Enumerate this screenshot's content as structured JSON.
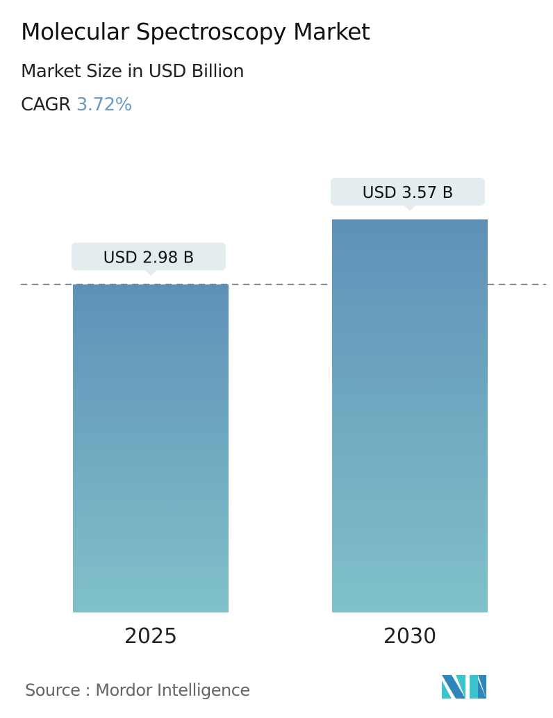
{
  "title": "Molecular Spectroscopy Market",
  "subtitle": "Market Size in USD Billion",
  "cagr_label": "CAGR",
  "cagr_value": "3.72%",
  "source": "Source :  Mordor Intelligence",
  "logo_text": "MI",
  "colors": {
    "bar_top": "#5f91b8",
    "bar_bottom": "#80c1c9",
    "label_bg": "#e3ecef",
    "dashed_line": "#5a7f98",
    "cagr": "#6a9bc2"
  },
  "chart_data": {
    "type": "bar",
    "categories": [
      "2025",
      "2030"
    ],
    "values": [
      2.98,
      3.57
    ],
    "data_labels": [
      "USD 2.98 B",
      "USD 3.57 B"
    ],
    "reference_line": 2.98,
    "ylim": [
      0,
      3.57
    ],
    "grid": false
  }
}
